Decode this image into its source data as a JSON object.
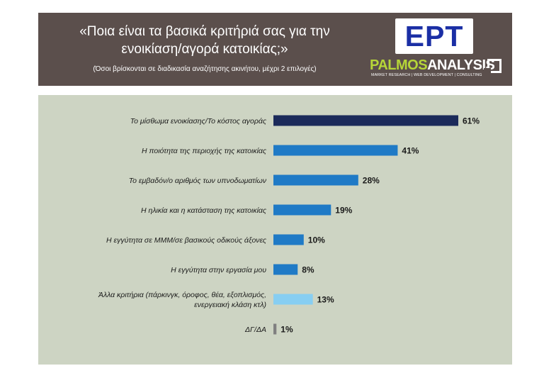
{
  "header": {
    "title_line1": "«Ποια είναι τα βασικά κριτήριά σας για την",
    "title_line2": "ενοικίαση/αγορά κατοικίας;»",
    "subtitle": "(Όσοι βρίσκονται σε διαδικασία αναζήτησης ακινήτου, μέχρι 2 επιλογές)",
    "ert_logo_text": "ΕΡΤ",
    "palmos_part1": "PALMOS",
    "palmos_part2": "ANALYSIS",
    "palmos_tagline": "MARKET RESEARCH | WEB DEVELOPMENT | CONSULTING"
  },
  "chart_data": {
    "type": "bar",
    "orientation": "horizontal",
    "title": "«Ποια είναι τα βασικά κριτήριά σας για την ενοικίαση/αγορά κατοικίας;»",
    "categories": [
      [
        "Το μίσθωμα ενοικίασης/Το κόστος αγοράς"
      ],
      [
        "Η ποιότητα της περιοχής της κατοικίας"
      ],
      [
        "Το εμβαδόν/ο αριθμός των υπνοδωματίων"
      ],
      [
        "Η ηλικία και η κατάσταση της κατοικίας"
      ],
      [
        "Η εγγύτητα σε ΜΜΜ/σε βασικούς οδικούς άξονες"
      ],
      [
        "Η εγγύτητα στην εργασία μου"
      ],
      [
        "Άλλα κριτήρια (πάρκινγκ, όροφος, θέα, εξοπλισμός,",
        "ενεργειακή κλάση κτλ)"
      ],
      [
        "ΔΓ/ΔΑ"
      ]
    ],
    "values": [
      61,
      41,
      28,
      19,
      10,
      8,
      13,
      1
    ],
    "value_labels": [
      "61%",
      "41%",
      "28%",
      "19%",
      "10%",
      "8%",
      "13%",
      "1%"
    ],
    "colors": [
      "#1b2a5a",
      "#1f7ac6",
      "#1f7ac6",
      "#1f7ac6",
      "#1f7ac6",
      "#1f7ac6",
      "#87cef2",
      "#808080"
    ],
    "xlim": [
      0,
      100
    ],
    "grid": false,
    "legend": "none"
  }
}
